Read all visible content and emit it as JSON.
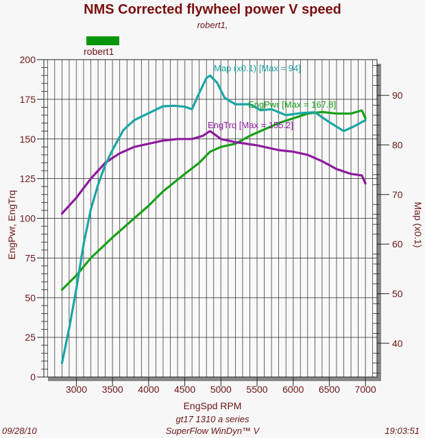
{
  "chart_data": {
    "type": "line",
    "title": "NMS Corrected flywheel power V speed",
    "subtitle": "robert1,",
    "legend": {
      "label": "robert1",
      "color": "#0a960a",
      "placement": "top-left"
    },
    "xlabel": "EngSpd  RPM",
    "ylabel": "EngPwr, EngTrq",
    "y2label": "Map  (x0.1)",
    "xlim": [
      2550,
      7160
    ],
    "ylim": [
      0,
      200
    ],
    "y2lim": [
      33.2,
      97.2
    ],
    "xticks": [
      "3000",
      "3500",
      "4000",
      "4500",
      "5000",
      "5500",
      "6000",
      "6500",
      "7000"
    ],
    "yticks": [
      "0",
      "25",
      "50",
      "75",
      "100",
      "125",
      "150",
      "175",
      "200"
    ],
    "y2ticks": [
      "40",
      "50",
      "60",
      "70",
      "80",
      "90"
    ],
    "grid": true,
    "series": [
      {
        "name": "EngPwr",
        "annotation": "EngPwr [Max = 167.8]",
        "axis": "left",
        "color": "#18a018",
        "x": [
          2800,
          3000,
          3200,
          3500,
          3800,
          4000,
          4200,
          4500,
          4700,
          4850,
          5000,
          5200,
          5400,
          5600,
          5800,
          6000,
          6200,
          6400,
          6600,
          6800,
          6950,
          7000
        ],
        "y": [
          55,
          64,
          75,
          88,
          100,
          108,
          117,
          128,
          135,
          142,
          145,
          147,
          152,
          156,
          160,
          163,
          166,
          167,
          166,
          166,
          168,
          163
        ]
      },
      {
        "name": "EngTrq",
        "annotation": "EngTrq [Max = 155.2]",
        "axis": "left",
        "color": "#8e1a9e",
        "x": [
          2800,
          3000,
          3200,
          3400,
          3600,
          3800,
          4000,
          4200,
          4400,
          4600,
          4750,
          4850,
          5000,
          5200,
          5500,
          5800,
          6000,
          6200,
          6400,
          6600,
          6800,
          6950,
          7000
        ],
        "y": [
          103,
          113,
          125,
          135,
          141,
          145,
          147,
          149,
          150,
          150,
          152,
          155,
          150,
          148,
          146,
          143,
          142,
          140,
          136,
          131,
          128,
          127,
          122
        ]
      },
      {
        "name": "Map",
        "annotation": "Map  (x0.1) [Max = 94]",
        "axis": "right",
        "color": "#1aa5a5",
        "x": [
          2800,
          2900,
          3000,
          3100,
          3200,
          3300,
          3400,
          3500,
          3650,
          3800,
          4000,
          4200,
          4350,
          4500,
          4600,
          4700,
          4800,
          4850,
          4950,
          5050,
          5200,
          5400,
          5550,
          5700,
          5900,
          6100,
          6300,
          6500,
          6700,
          6850,
          7000
        ],
        "y": [
          36,
          43,
          51,
          60,
          67,
          72,
          76,
          79,
          83,
          85,
          86.4,
          87.8,
          87.9,
          87.7,
          87.2,
          90.5,
          93.5,
          94,
          92.5,
          89.5,
          88.2,
          88.2,
          87,
          87.2,
          86,
          86.4,
          86.6,
          84.6,
          82.8,
          83.8,
          85
        ]
      }
    ]
  },
  "footer": {
    "series": "gt17 1310 a series",
    "app": "SuperFlow WinDyn™ V",
    "date": "09/28/10",
    "time": "19:03:51"
  }
}
